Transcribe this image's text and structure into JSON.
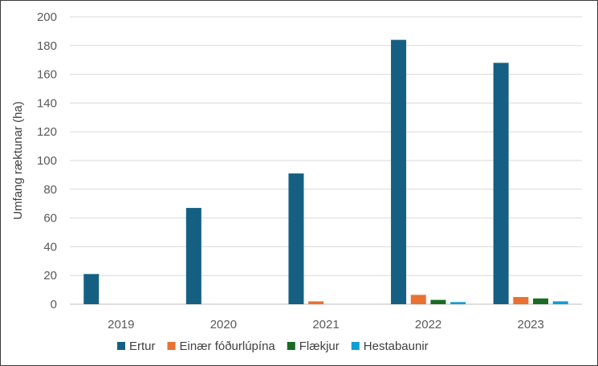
{
  "chart_data": {
    "type": "bar",
    "title": "",
    "xlabel": "",
    "ylabel": "Umfang ræktunar (ha)",
    "ylim": [
      0,
      200
    ],
    "yticks": [
      0,
      20,
      40,
      60,
      80,
      100,
      120,
      140,
      160,
      180,
      200
    ],
    "categories": [
      "2019",
      "2020",
      "2021",
      "2022",
      "2023"
    ],
    "series": [
      {
        "name": "Ertur",
        "color": "#156082",
        "values": [
          21,
          67,
          91,
          184,
          168
        ]
      },
      {
        "name": "Einær fóðurlúpína",
        "color": "#E97132",
        "values": [
          0,
          0,
          2,
          6.5,
          5
        ]
      },
      {
        "name": "Flækjur",
        "color": "#196B24",
        "values": [
          0,
          0,
          0,
          3,
          4
        ]
      },
      {
        "name": "Hestabaunir",
        "color": "#0F9ED5",
        "values": [
          0,
          0,
          0,
          1.5,
          2
        ]
      }
    ],
    "grid": true,
    "legend_position": "bottom"
  }
}
